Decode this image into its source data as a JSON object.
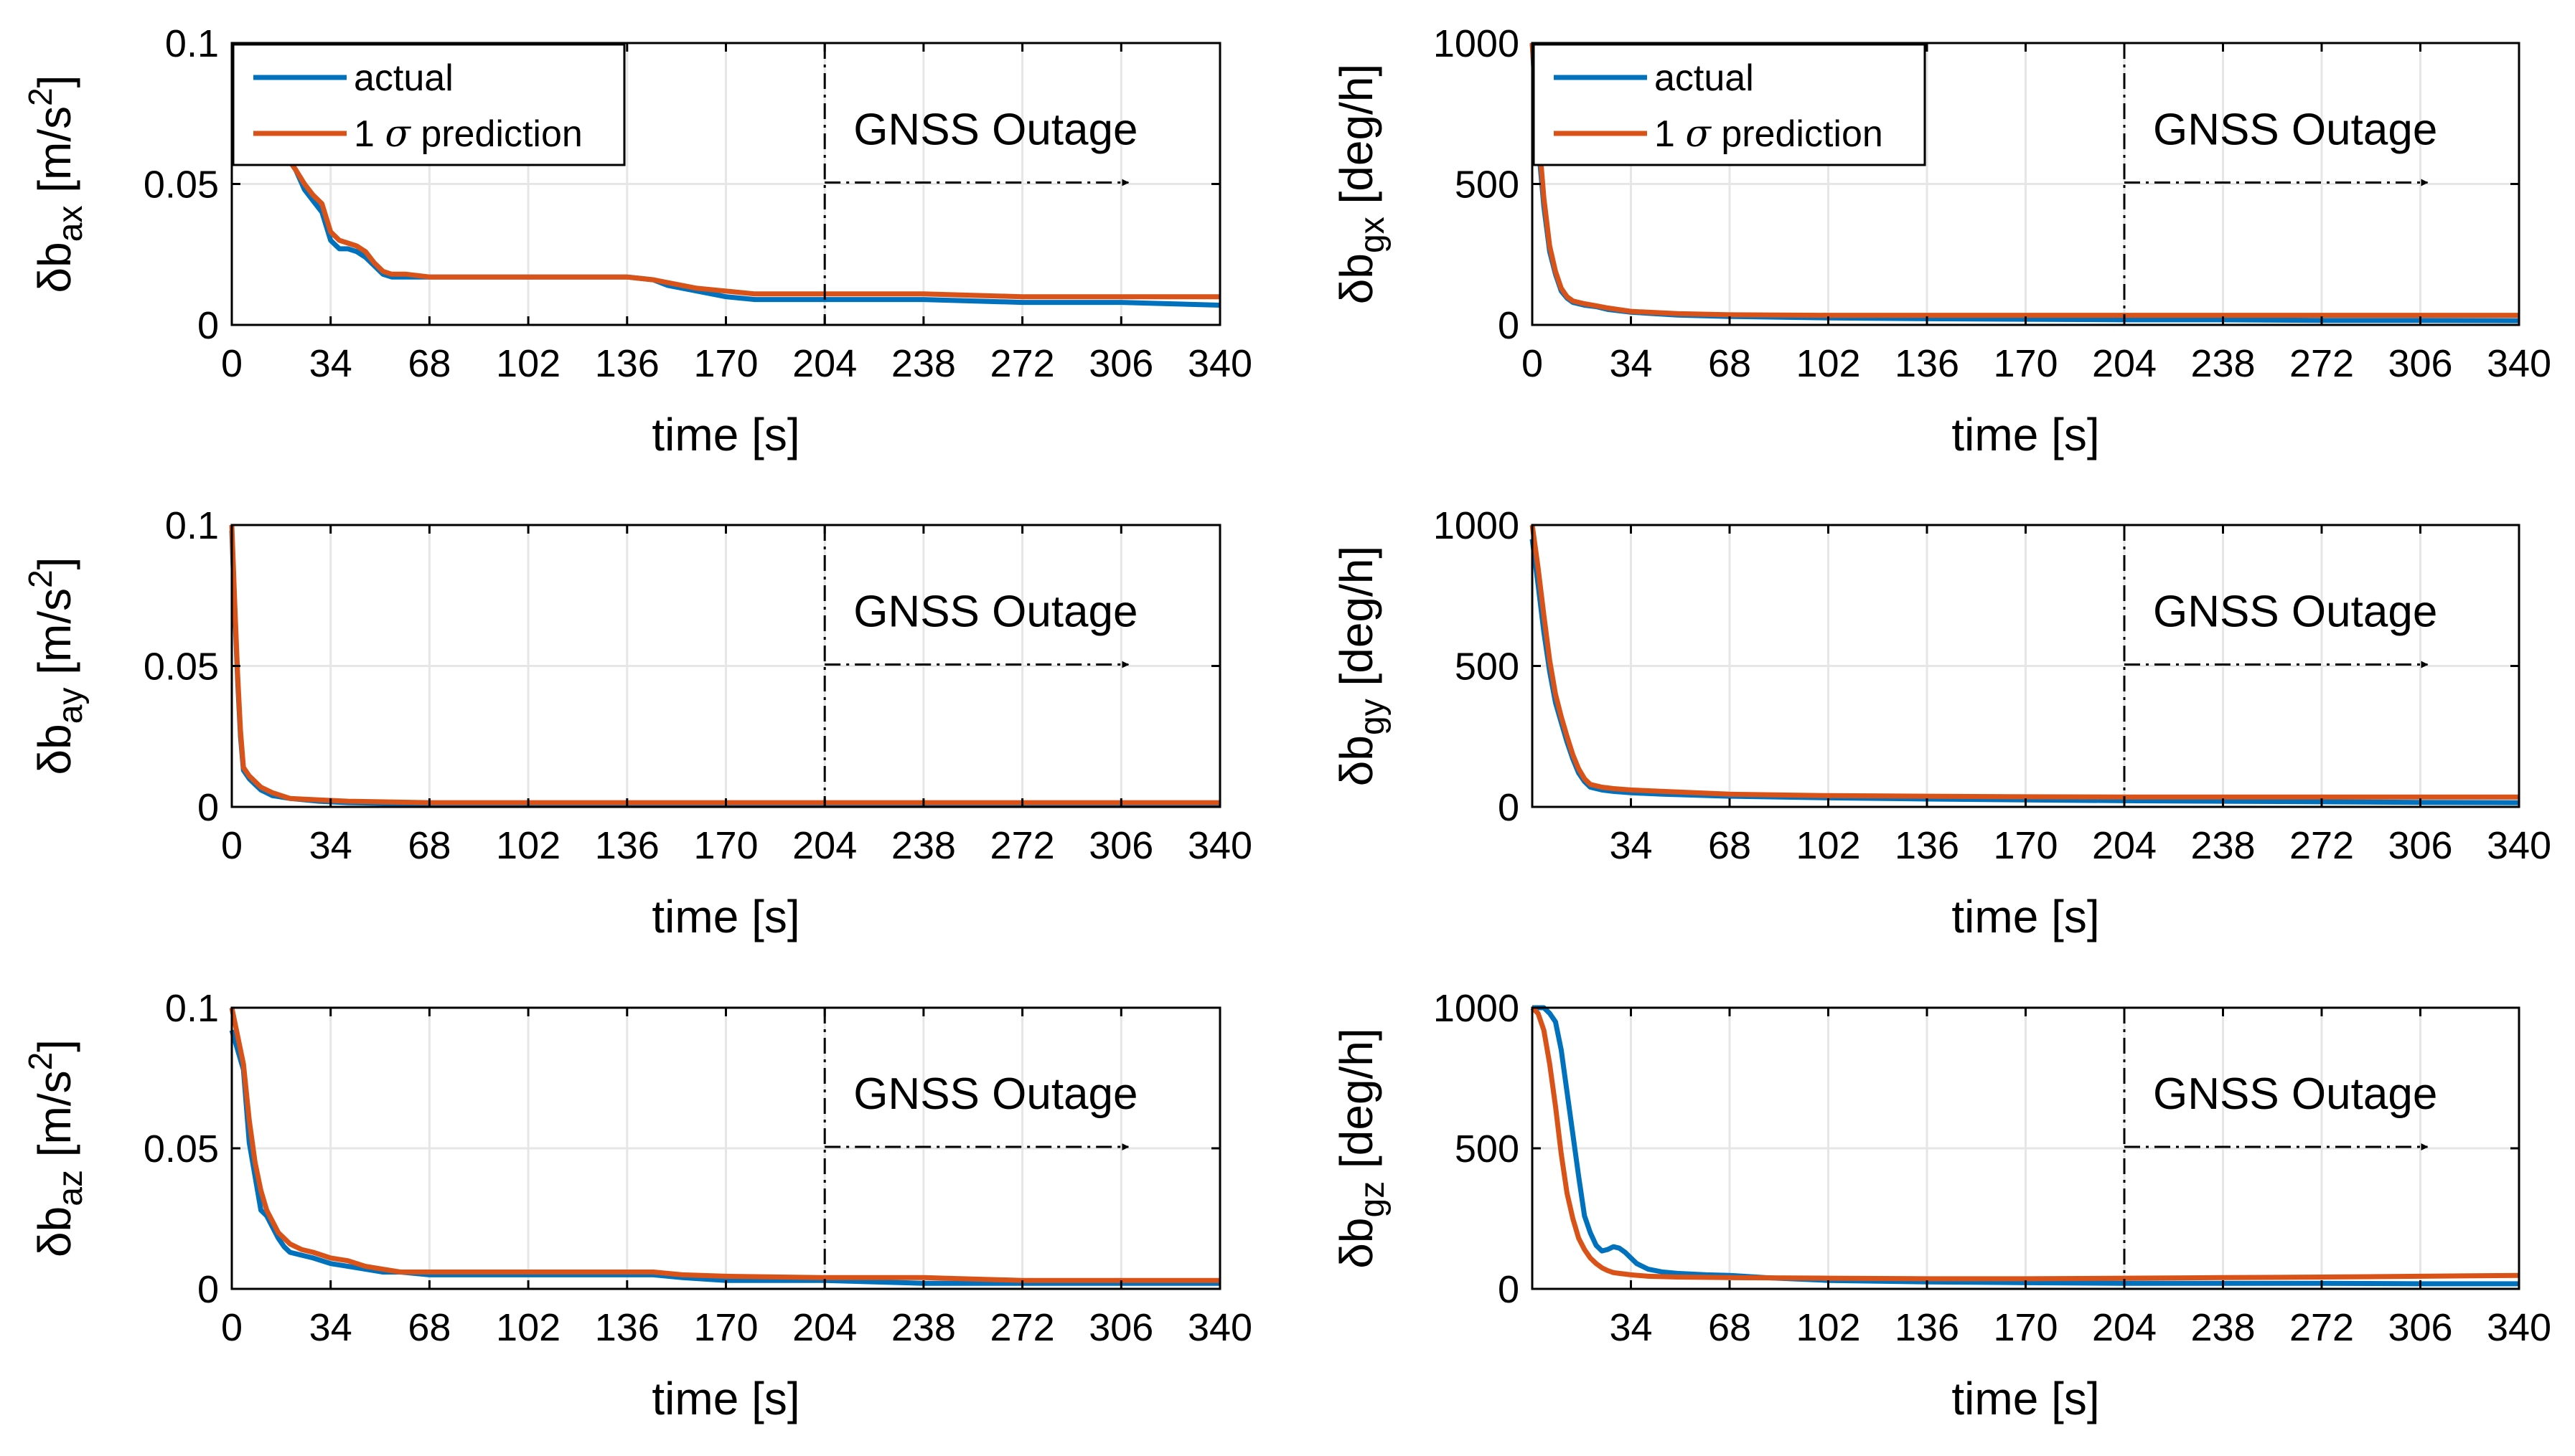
{
  "colors": {
    "actual": "#0072BD",
    "prediction": "#D95319",
    "grid": "#e6e6e6",
    "axis": "#000000"
  },
  "legend": {
    "actual": "actual",
    "prediction_prefix": "1 ",
    "sigma": "σ",
    "prediction_suffix": " prediction"
  },
  "xlabel": "time  [s]",
  "annotation": {
    "text": "GNSS Outage",
    "outage_start": 204,
    "arrow_end": 306
  },
  "chart_data": [
    {
      "type": "line",
      "id": "bax",
      "ylabel_main": "δb",
      "ylabel_sub": "ax",
      "ylabel_unit": " [m/s",
      "ylabel_sup": "2",
      "ylabel_close": "]",
      "xlim": [
        0,
        340
      ],
      "ylim": [
        0,
        0.1
      ],
      "xticks": [
        "0",
        "34",
        "68",
        "102",
        "136",
        "170",
        "204",
        "238",
        "272",
        "306",
        "340"
      ],
      "yticks": [
        "0",
        "0.05",
        "0.1"
      ],
      "ytick_values": [
        0,
        0.05,
        0.1
      ],
      "has_legend": true,
      "series": [
        {
          "name": "actual",
          "x": [
            20,
            22,
            25,
            28,
            31,
            34,
            37,
            40,
            43,
            46,
            49,
            52,
            55,
            60,
            68,
            80,
            102,
            120,
            136,
            145,
            150,
            160,
            170,
            180,
            204,
            238,
            272,
            306,
            340
          ],
          "y": [
            0.058,
            0.055,
            0.048,
            0.044,
            0.04,
            0.03,
            0.027,
            0.027,
            0.026,
            0.024,
            0.021,
            0.018,
            0.017,
            0.017,
            0.017,
            0.017,
            0.017,
            0.017,
            0.017,
            0.016,
            0.014,
            0.012,
            0.01,
            0.009,
            0.009,
            0.009,
            0.008,
            0.008,
            0.007
          ]
        },
        {
          "name": "1 σ prediction",
          "x": [
            20,
            22,
            25,
            28,
            31,
            34,
            37,
            40,
            43,
            46,
            49,
            52,
            55,
            60,
            68,
            80,
            102,
            120,
            136,
            145,
            150,
            160,
            170,
            180,
            204,
            238,
            272,
            306,
            340
          ],
          "y": [
            0.058,
            0.055,
            0.05,
            0.046,
            0.043,
            0.033,
            0.03,
            0.029,
            0.028,
            0.026,
            0.022,
            0.019,
            0.018,
            0.018,
            0.017,
            0.017,
            0.017,
            0.017,
            0.017,
            0.016,
            0.015,
            0.013,
            0.012,
            0.011,
            0.011,
            0.011,
            0.01,
            0.01,
            0.01
          ]
        }
      ]
    },
    {
      "type": "line",
      "id": "bgx",
      "ylabel_main": "δb",
      "ylabel_sub": "gx",
      "ylabel_unit": " [deg/h]",
      "ylabel_sup": "",
      "ylabel_close": "",
      "xlim": [
        0,
        340
      ],
      "ylim": [
        0,
        1000
      ],
      "xticks": [
        "0",
        "34",
        "68",
        "102",
        "136",
        "170",
        "204",
        "238",
        "272",
        "306",
        "340"
      ],
      "yticks": [
        "0",
        "500",
        "1000"
      ],
      "ytick_values": [
        0,
        500,
        1000
      ],
      "has_legend": true,
      "series": [
        {
          "name": "actual",
          "x": [
            0,
            2,
            4,
            6,
            8,
            10,
            12,
            14,
            18,
            22,
            26,
            34,
            50,
            68,
            102,
            136,
            170,
            204,
            238,
            272,
            306,
            340
          ],
          "y": [
            1000,
            650,
            420,
            260,
            180,
            120,
            95,
            80,
            70,
            65,
            55,
            45,
            35,
            30,
            25,
            22,
            20,
            18,
            18,
            16,
            16,
            15
          ]
        },
        {
          "name": "1 σ prediction",
          "x": [
            0,
            2,
            4,
            6,
            8,
            10,
            12,
            14,
            18,
            22,
            26,
            34,
            50,
            68,
            102,
            136,
            170,
            204,
            238,
            272,
            306,
            340
          ],
          "y": [
            1000,
            700,
            450,
            280,
            190,
            130,
            100,
            85,
            75,
            68,
            60,
            48,
            40,
            36,
            34,
            34,
            34,
            34,
            34,
            34,
            34,
            34
          ]
        }
      ]
    },
    {
      "type": "line",
      "id": "bay",
      "ylabel_main": "δb",
      "ylabel_sub": "ay",
      "ylabel_unit": " [m/s",
      "ylabel_sup": "2",
      "ylabel_close": "]",
      "xlim": [
        0,
        340
      ],
      "ylim": [
        0,
        0.1
      ],
      "xticks": [
        "0",
        "34",
        "68",
        "102",
        "136",
        "170",
        "204",
        "238",
        "272",
        "306",
        "340"
      ],
      "yticks": [
        "0",
        "0.05",
        "0.1"
      ],
      "ytick_values": [
        0,
        0.05,
        0.1
      ],
      "has_legend": false,
      "series": [
        {
          "name": "actual",
          "x": [
            0,
            1,
            2,
            3,
            4,
            6,
            8,
            10,
            14,
            20,
            30,
            40,
            68,
            102,
            136,
            170,
            204,
            238,
            272,
            306,
            340
          ],
          "y": [
            0.098,
            0.07,
            0.045,
            0.025,
            0.013,
            0.01,
            0.008,
            0.006,
            0.004,
            0.003,
            0.002,
            0.0015,
            0.001,
            0.001,
            0.001,
            0.001,
            0.001,
            0.001,
            0.001,
            0.001,
            0.001
          ]
        },
        {
          "name": "1 σ prediction",
          "x": [
            0,
            1,
            2,
            3,
            4,
            6,
            8,
            10,
            14,
            20,
            30,
            40,
            68,
            102,
            136,
            170,
            204,
            238,
            272,
            306,
            340
          ],
          "y": [
            0.1,
            0.072,
            0.047,
            0.027,
            0.014,
            0.011,
            0.009,
            0.007,
            0.005,
            0.003,
            0.0025,
            0.002,
            0.0015,
            0.0015,
            0.0015,
            0.0015,
            0.0015,
            0.0015,
            0.0015,
            0.0015,
            0.0015
          ]
        }
      ]
    },
    {
      "type": "line",
      "id": "bgy",
      "ylabel_main": "δb",
      "ylabel_sub": "gy",
      "ylabel_unit": " [deg/h]",
      "ylabel_sup": "",
      "ylabel_close": "",
      "xlim": [
        0,
        340
      ],
      "ylim": [
        0,
        1000
      ],
      "xticks": [
        "",
        "34",
        "68",
        "102",
        "136",
        "170",
        "204",
        "238",
        "272",
        "306",
        "340"
      ],
      "yticks": [
        "0",
        "500",
        "1000"
      ],
      "ytick_values": [
        0,
        500,
        1000
      ],
      "has_legend": false,
      "series": [
        {
          "name": "actual",
          "x": [
            0,
            2,
            4,
            6,
            8,
            10,
            12,
            14,
            16,
            18,
            20,
            24,
            28,
            34,
            45,
            68,
            102,
            136,
            170,
            204,
            238,
            272,
            306,
            340
          ],
          "y": [
            950,
            790,
            620,
            480,
            370,
            300,
            230,
            170,
            120,
            90,
            70,
            60,
            55,
            50,
            45,
            38,
            32,
            28,
            25,
            22,
            20,
            18,
            16,
            15
          ]
        },
        {
          "name": "1 σ prediction",
          "x": [
            0,
            2,
            4,
            6,
            8,
            10,
            12,
            14,
            16,
            18,
            20,
            24,
            28,
            34,
            45,
            68,
            102,
            136,
            170,
            204,
            238,
            272,
            306,
            340
          ],
          "y": [
            1000,
            850,
            680,
            520,
            400,
            320,
            250,
            185,
            135,
            100,
            80,
            70,
            65,
            60,
            55,
            45,
            40,
            38,
            36,
            35,
            35,
            35,
            35,
            35
          ]
        }
      ]
    },
    {
      "type": "line",
      "id": "baz",
      "ylabel_main": "δb",
      "ylabel_sub": "az",
      "ylabel_unit": " [m/s",
      "ylabel_sup": "2",
      "ylabel_close": "]",
      "xlim": [
        0,
        340
      ],
      "ylim": [
        0,
        0.1
      ],
      "xticks": [
        "0",
        "34",
        "68",
        "102",
        "136",
        "170",
        "204",
        "238",
        "272",
        "306",
        "340"
      ],
      "yticks": [
        "0",
        "0.05",
        "0.1"
      ],
      "ytick_values": [
        0,
        0.05,
        0.1
      ],
      "has_legend": false,
      "series": [
        {
          "name": "actual",
          "x": [
            0,
            2,
            4,
            6,
            8,
            10,
            12,
            14,
            16,
            18,
            20,
            24,
            28,
            34,
            40,
            46,
            52,
            58,
            68,
            102,
            136,
            145,
            155,
            170,
            204,
            238,
            272,
            306,
            340
          ],
          "y": [
            0.092,
            0.085,
            0.078,
            0.052,
            0.04,
            0.028,
            0.026,
            0.022,
            0.018,
            0.015,
            0.013,
            0.012,
            0.011,
            0.009,
            0.008,
            0.007,
            0.006,
            0.006,
            0.005,
            0.005,
            0.005,
            0.005,
            0.004,
            0.003,
            0.003,
            0.002,
            0.002,
            0.002,
            0.002
          ]
        },
        {
          "name": "1 σ prediction",
          "x": [
            0,
            2,
            4,
            6,
            8,
            10,
            12,
            14,
            16,
            18,
            20,
            24,
            28,
            34,
            40,
            46,
            52,
            58,
            68,
            102,
            136,
            145,
            155,
            170,
            204,
            238,
            272,
            306,
            340
          ],
          "y": [
            0.1,
            0.09,
            0.08,
            0.06,
            0.045,
            0.035,
            0.028,
            0.024,
            0.02,
            0.018,
            0.016,
            0.014,
            0.013,
            0.011,
            0.01,
            0.008,
            0.007,
            0.006,
            0.006,
            0.006,
            0.006,
            0.006,
            0.005,
            0.0045,
            0.004,
            0.004,
            0.003,
            0.003,
            0.003
          ]
        }
      ]
    },
    {
      "type": "line",
      "id": "bgz",
      "ylabel_main": "δb",
      "ylabel_sub": "gz",
      "ylabel_unit": " [deg/h]",
      "ylabel_sup": "",
      "ylabel_close": "",
      "xlim": [
        0,
        340
      ],
      "ylim": [
        0,
        1000
      ],
      "xticks": [
        "",
        "34",
        "68",
        "102",
        "136",
        "170",
        "204",
        "238",
        "272",
        "306",
        "340"
      ],
      "yticks": [
        "0",
        "500",
        "1000"
      ],
      "ytick_values": [
        0,
        500,
        1000
      ],
      "has_legend": false,
      "series": [
        {
          "name": "actual",
          "x": [
            0,
            4,
            6,
            8,
            10,
            12,
            14,
            16,
            18,
            20,
            22,
            24,
            26,
            28,
            30,
            32,
            34,
            36,
            40,
            45,
            50,
            60,
            68,
            80,
            102,
            136,
            170,
            204,
            238,
            272,
            306,
            340
          ],
          "y": [
            1000,
            1000,
            980,
            950,
            850,
            700,
            550,
            400,
            260,
            200,
            155,
            135,
            140,
            150,
            145,
            130,
            110,
            90,
            70,
            60,
            55,
            50,
            48,
            40,
            30,
            25,
            22,
            20,
            20,
            20,
            18,
            18
          ]
        },
        {
          "name": "1 σ prediction",
          "x": [
            0,
            2,
            4,
            6,
            8,
            10,
            12,
            14,
            16,
            18,
            20,
            22,
            24,
            26,
            28,
            30,
            34,
            40,
            50,
            68,
            102,
            136,
            170,
            204,
            238,
            272,
            306,
            340
          ],
          "y": [
            1000,
            980,
            920,
            800,
            650,
            480,
            340,
            250,
            180,
            140,
            110,
            90,
            75,
            65,
            58,
            55,
            50,
            45,
            42,
            40,
            38,
            36,
            36,
            38,
            40,
            42,
            45,
            48
          ]
        }
      ]
    }
  ]
}
